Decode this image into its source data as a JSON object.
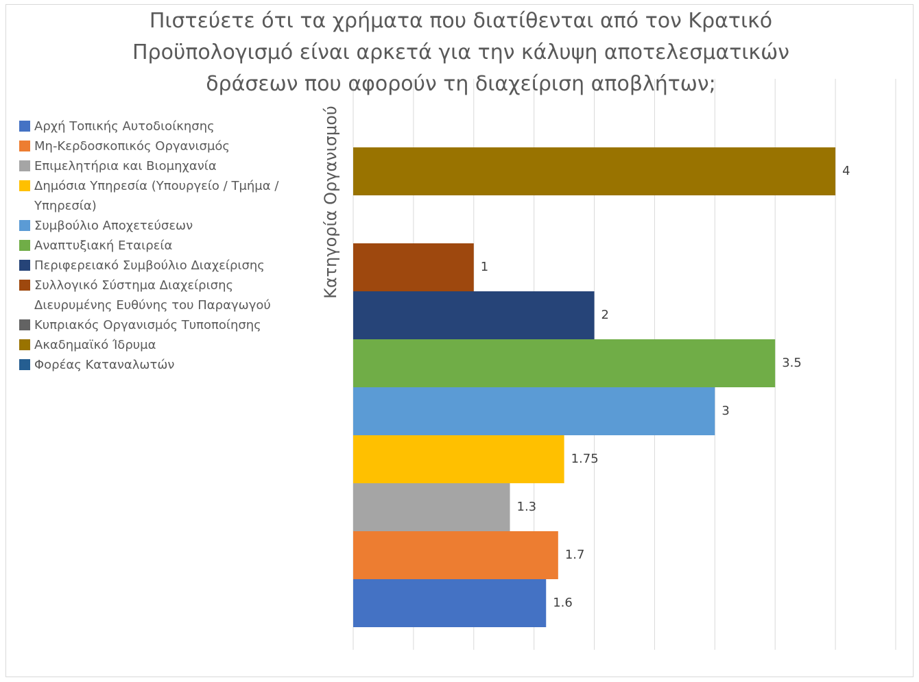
{
  "chart_data": {
    "type": "bar",
    "orientation": "horizontal",
    "title": "Πιστεύετε ότι τα χρήματα που διατίθενται από τον Κρατικό Προϋπολογισμό είναι αρκετά για την κάλυψη αποτελεσματικών δράσεων που αφορούν τη διαχείριση αποβλήτων;",
    "y_axis_label": "Κατηγορία Οργανισμού",
    "categories": [
      null
    ],
    "series": [
      {
        "name": "Αρχή Τοπικής Αυτοδιοίκησης",
        "color": "#4472c4",
        "values": [
          1.6
        ]
      },
      {
        "name": "Μη-Κερδοσκοπικός Οργανισμός",
        "color": "#ed7d31",
        "values": [
          1.7
        ]
      },
      {
        "name": "Επιμελητήρια και Βιομηχανία",
        "color": "#a5a5a5",
        "values": [
          1.3
        ]
      },
      {
        "name": "Δημόσια Υπηρεσία (Υπουργείο / Τμήμα / Υπηρεσία)",
        "color": "#ffc000",
        "values": [
          1.75
        ]
      },
      {
        "name": "Συμβούλιο Αποχετεύσεων",
        "color": "#5b9bd5",
        "values": [
          3
        ]
      },
      {
        "name": "Αναπτυξιακή Εταιρεία",
        "color": "#70ad47",
        "values": [
          3.5
        ]
      },
      {
        "name": "Περιφερειακό Συμβούλιο Διαχείρισης",
        "color": "#264478",
        "values": [
          2
        ]
      },
      {
        "name": "Συλλογικό Σύστημα Διαχείρισης Διευρυμένης Ευθύνης του Παραγωγού",
        "color": "#9e480e",
        "values": [
          1
        ]
      },
      {
        "name": "Κυπριακός Οργανισμός Τυποποίησης",
        "color": "#636363",
        "values": [
          null
        ]
      },
      {
        "name": "Ακαδημαϊκό Ίδρυμα",
        "color": "#997300",
        "values": [
          4
        ]
      },
      {
        "name": "Φορέας Καταναλωτών",
        "color": "#255e91",
        "values": [
          null
        ]
      }
    ],
    "xlim": [
      0,
      4.5
    ],
    "xticks": [
      0,
      0.5,
      1,
      1.5,
      2,
      2.5,
      3,
      3.5,
      4,
      4.5
    ],
    "grid": true,
    "legend": "left"
  }
}
